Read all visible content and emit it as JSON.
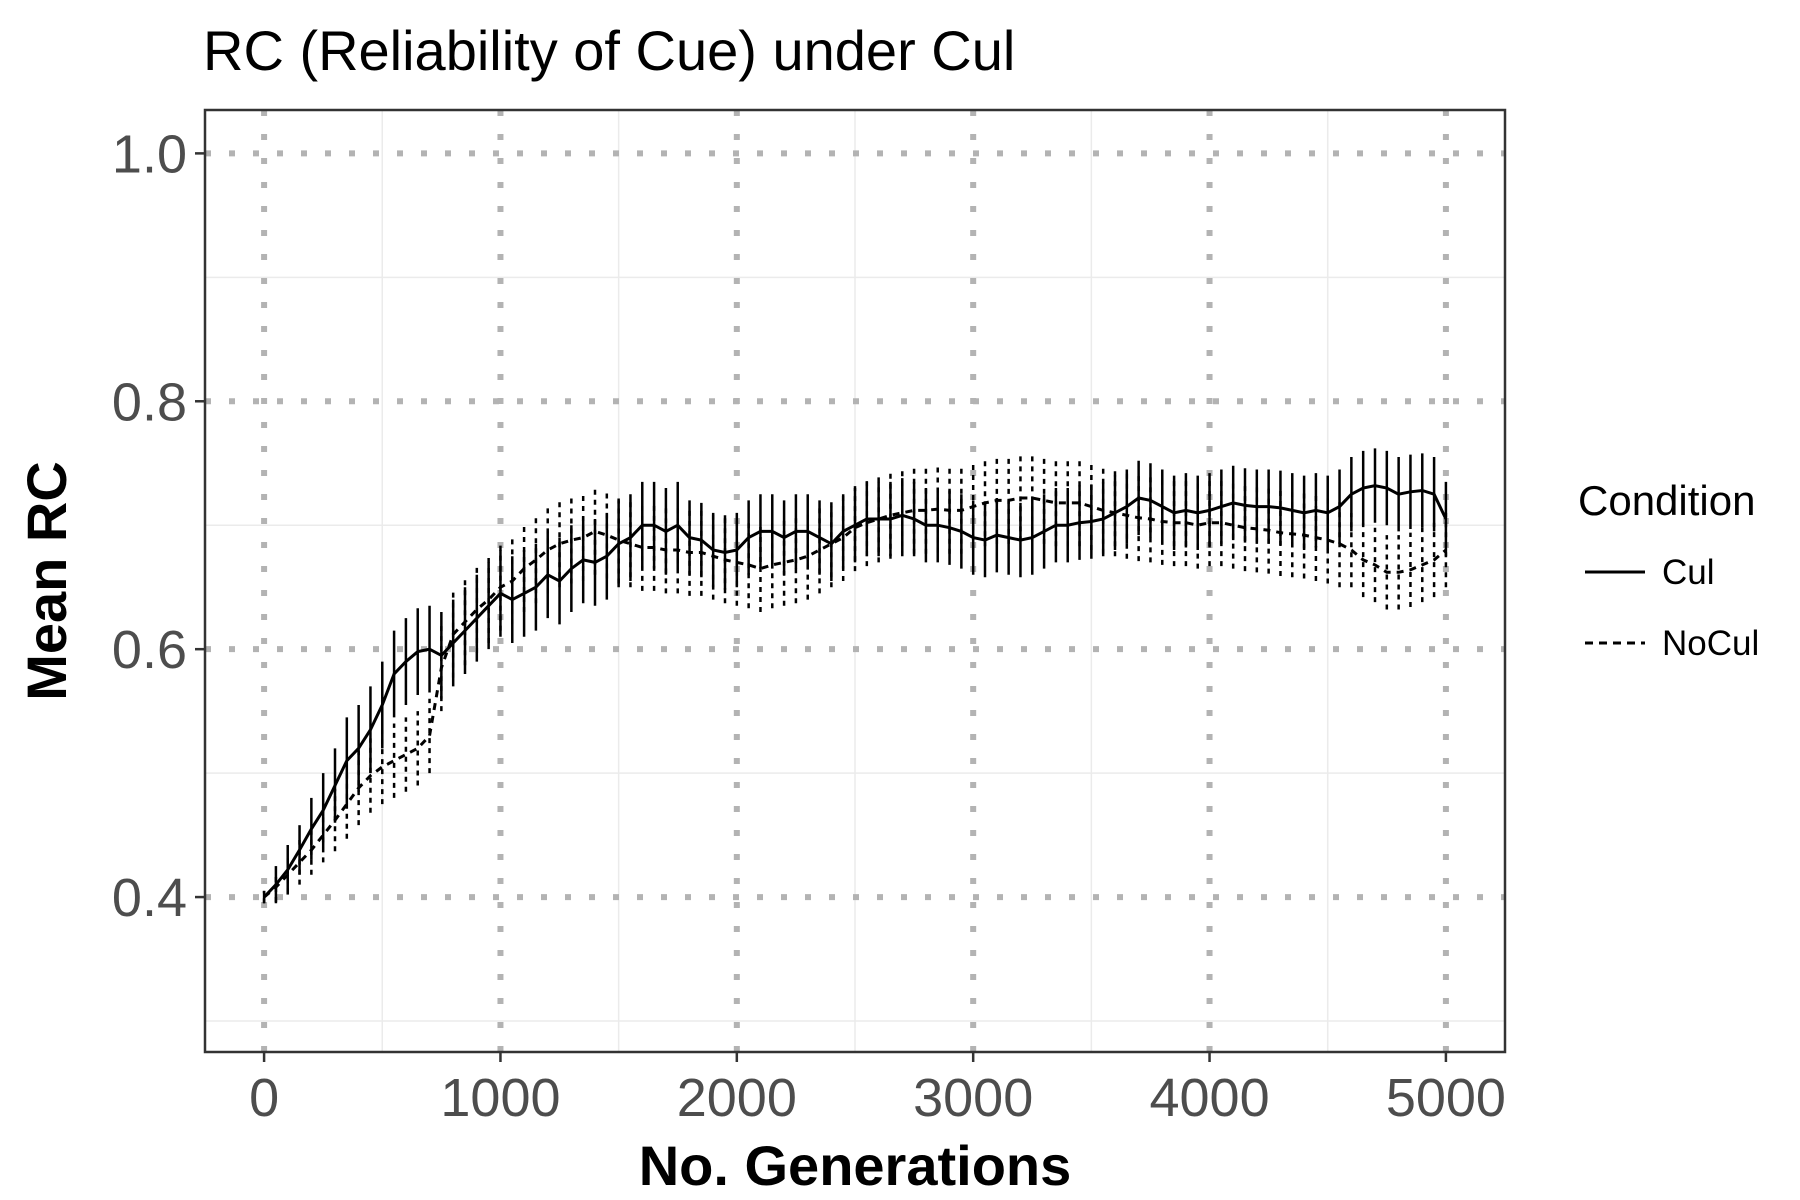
{
  "chart_data": {
    "type": "line",
    "title": "RC (Reliability of Cue) under Cul",
    "xlabel": "No. Generations",
    "ylabel": "Mean RC",
    "xlim": [
      -250,
      5250
    ],
    "ylim": [
      0.275,
      1.035
    ],
    "xticks": [
      0,
      1000,
      2000,
      3000,
      4000,
      5000
    ],
    "xtick_labels": [
      "0",
      "1000",
      "2000",
      "3000",
      "4000",
      "5000"
    ],
    "yticks": [
      0.4,
      0.6,
      0.8,
      1.0
    ],
    "ytick_labels": [
      "0.4",
      "0.6",
      "0.8",
      "1.0"
    ],
    "grid": true,
    "legend": {
      "title": "Condition",
      "position": "right"
    },
    "colors": {
      "line": "#000000",
      "major_grid": "#b3b3b3",
      "minor_grid": "#ebebeb",
      "tick_text": "#4d4d4d"
    },
    "x": [
      0,
      50,
      100,
      150,
      200,
      250,
      300,
      350,
      400,
      450,
      500,
      550,
      600,
      650,
      700,
      750,
      800,
      850,
      900,
      950,
      1000,
      1050,
      1100,
      1150,
      1200,
      1250,
      1300,
      1350,
      1400,
      1450,
      1500,
      1550,
      1600,
      1650,
      1700,
      1750,
      1800,
      1850,
      1900,
      1950,
      2000,
      2050,
      2100,
      2150,
      2200,
      2250,
      2300,
      2350,
      2400,
      2450,
      2500,
      2550,
      2600,
      2650,
      2700,
      2750,
      2800,
      2850,
      2900,
      2950,
      3000,
      3050,
      3100,
      3150,
      3200,
      3250,
      3300,
      3350,
      3400,
      3450,
      3500,
      3550,
      3600,
      3650,
      3700,
      3750,
      3800,
      3850,
      3900,
      3950,
      4000,
      4050,
      4100,
      4150,
      4200,
      4250,
      4300,
      4350,
      4400,
      4450,
      4500,
      4550,
      4600,
      4650,
      4700,
      4750,
      4800,
      4850,
      4900,
      4950,
      5000
    ],
    "series": [
      {
        "name": "Cul",
        "dash": "solid",
        "values": [
          0.4,
          0.41,
          0.422,
          0.438,
          0.455,
          0.47,
          0.49,
          0.51,
          0.52,
          0.535,
          0.555,
          0.58,
          0.59,
          0.598,
          0.6,
          0.595,
          0.605,
          0.615,
          0.625,
          0.635,
          0.645,
          0.64,
          0.645,
          0.65,
          0.66,
          0.655,
          0.665,
          0.672,
          0.67,
          0.675,
          0.685,
          0.69,
          0.7,
          0.7,
          0.695,
          0.7,
          0.69,
          0.688,
          0.68,
          0.678,
          0.68,
          0.69,
          0.695,
          0.695,
          0.69,
          0.695,
          0.695,
          0.69,
          0.685,
          0.695,
          0.7,
          0.705,
          0.705,
          0.705,
          0.708,
          0.705,
          0.7,
          0.7,
          0.698,
          0.695,
          0.69,
          0.688,
          0.692,
          0.69,
          0.688,
          0.69,
          0.695,
          0.7,
          0.7,
          0.702,
          0.703,
          0.705,
          0.71,
          0.715,
          0.722,
          0.72,
          0.715,
          0.71,
          0.712,
          0.71,
          0.712,
          0.715,
          0.718,
          0.716,
          0.715,
          0.715,
          0.714,
          0.712,
          0.71,
          0.712,
          0.71,
          0.715,
          0.725,
          0.73,
          0.732,
          0.73,
          0.725,
          0.727,
          0.728,
          0.725,
          0.705
        ],
        "err": [
          0.005,
          0.015,
          0.02,
          0.02,
          0.025,
          0.03,
          0.03,
          0.035,
          0.035,
          0.035,
          0.035,
          0.035,
          0.035,
          0.035,
          0.035,
          0.035,
          0.035,
          0.035,
          0.035,
          0.035,
          0.035,
          0.035,
          0.035,
          0.035,
          0.035,
          0.035,
          0.035,
          0.035,
          0.035,
          0.035,
          0.035,
          0.035,
          0.035,
          0.035,
          0.035,
          0.035,
          0.03,
          0.03,
          0.03,
          0.03,
          0.03,
          0.03,
          0.03,
          0.03,
          0.03,
          0.03,
          0.03,
          0.03,
          0.03,
          0.03,
          0.03,
          0.03,
          0.03,
          0.03,
          0.03,
          0.03,
          0.03,
          0.03,
          0.03,
          0.03,
          0.03,
          0.03,
          0.03,
          0.03,
          0.03,
          0.03,
          0.03,
          0.03,
          0.03,
          0.03,
          0.03,
          0.03,
          0.03,
          0.03,
          0.03,
          0.03,
          0.03,
          0.03,
          0.03,
          0.03,
          0.03,
          0.03,
          0.03,
          0.03,
          0.03,
          0.03,
          0.03,
          0.03,
          0.03,
          0.03,
          0.03,
          0.03,
          0.03,
          0.03,
          0.03,
          0.03,
          0.03,
          0.03,
          0.03,
          0.03,
          0.03
        ]
      },
      {
        "name": "NoCul",
        "dash": "dashed",
        "values": [
          0.4,
          0.408,
          0.418,
          0.428,
          0.438,
          0.45,
          0.462,
          0.475,
          0.488,
          0.498,
          0.505,
          0.51,
          0.515,
          0.52,
          0.53,
          0.585,
          0.612,
          0.622,
          0.632,
          0.64,
          0.65,
          0.655,
          0.665,
          0.672,
          0.68,
          0.685,
          0.688,
          0.69,
          0.695,
          0.692,
          0.688,
          0.685,
          0.682,
          0.682,
          0.68,
          0.68,
          0.678,
          0.678,
          0.675,
          0.672,
          0.67,
          0.668,
          0.665,
          0.668,
          0.67,
          0.672,
          0.675,
          0.68,
          0.685,
          0.69,
          0.698,
          0.702,
          0.705,
          0.708,
          0.71,
          0.712,
          0.712,
          0.713,
          0.712,
          0.712,
          0.715,
          0.718,
          0.72,
          0.72,
          0.722,
          0.722,
          0.72,
          0.718,
          0.718,
          0.718,
          0.715,
          0.712,
          0.71,
          0.708,
          0.706,
          0.705,
          0.703,
          0.702,
          0.702,
          0.7,
          0.702,
          0.702,
          0.7,
          0.698,
          0.697,
          0.696,
          0.694,
          0.693,
          0.692,
          0.69,
          0.688,
          0.685,
          0.68,
          0.672,
          0.668,
          0.662,
          0.662,
          0.664,
          0.668,
          0.672,
          0.68
        ],
        "err": [
          0.005,
          0.012,
          0.015,
          0.018,
          0.02,
          0.022,
          0.025,
          0.028,
          0.03,
          0.03,
          0.03,
          0.03,
          0.03,
          0.03,
          0.03,
          0.035,
          0.035,
          0.035,
          0.035,
          0.035,
          0.035,
          0.035,
          0.035,
          0.035,
          0.035,
          0.035,
          0.035,
          0.035,
          0.035,
          0.035,
          0.035,
          0.035,
          0.035,
          0.035,
          0.035,
          0.035,
          0.035,
          0.035,
          0.035,
          0.035,
          0.035,
          0.035,
          0.035,
          0.035,
          0.035,
          0.035,
          0.035,
          0.035,
          0.035,
          0.035,
          0.035,
          0.035,
          0.035,
          0.035,
          0.035,
          0.035,
          0.035,
          0.035,
          0.035,
          0.035,
          0.035,
          0.035,
          0.035,
          0.035,
          0.035,
          0.035,
          0.035,
          0.035,
          0.035,
          0.035,
          0.035,
          0.035,
          0.035,
          0.035,
          0.035,
          0.035,
          0.035,
          0.035,
          0.035,
          0.035,
          0.035,
          0.035,
          0.035,
          0.035,
          0.035,
          0.035,
          0.035,
          0.035,
          0.035,
          0.035,
          0.035,
          0.035,
          0.03,
          0.03,
          0.03,
          0.03,
          0.03,
          0.03,
          0.03,
          0.03,
          0.03
        ]
      }
    ]
  }
}
